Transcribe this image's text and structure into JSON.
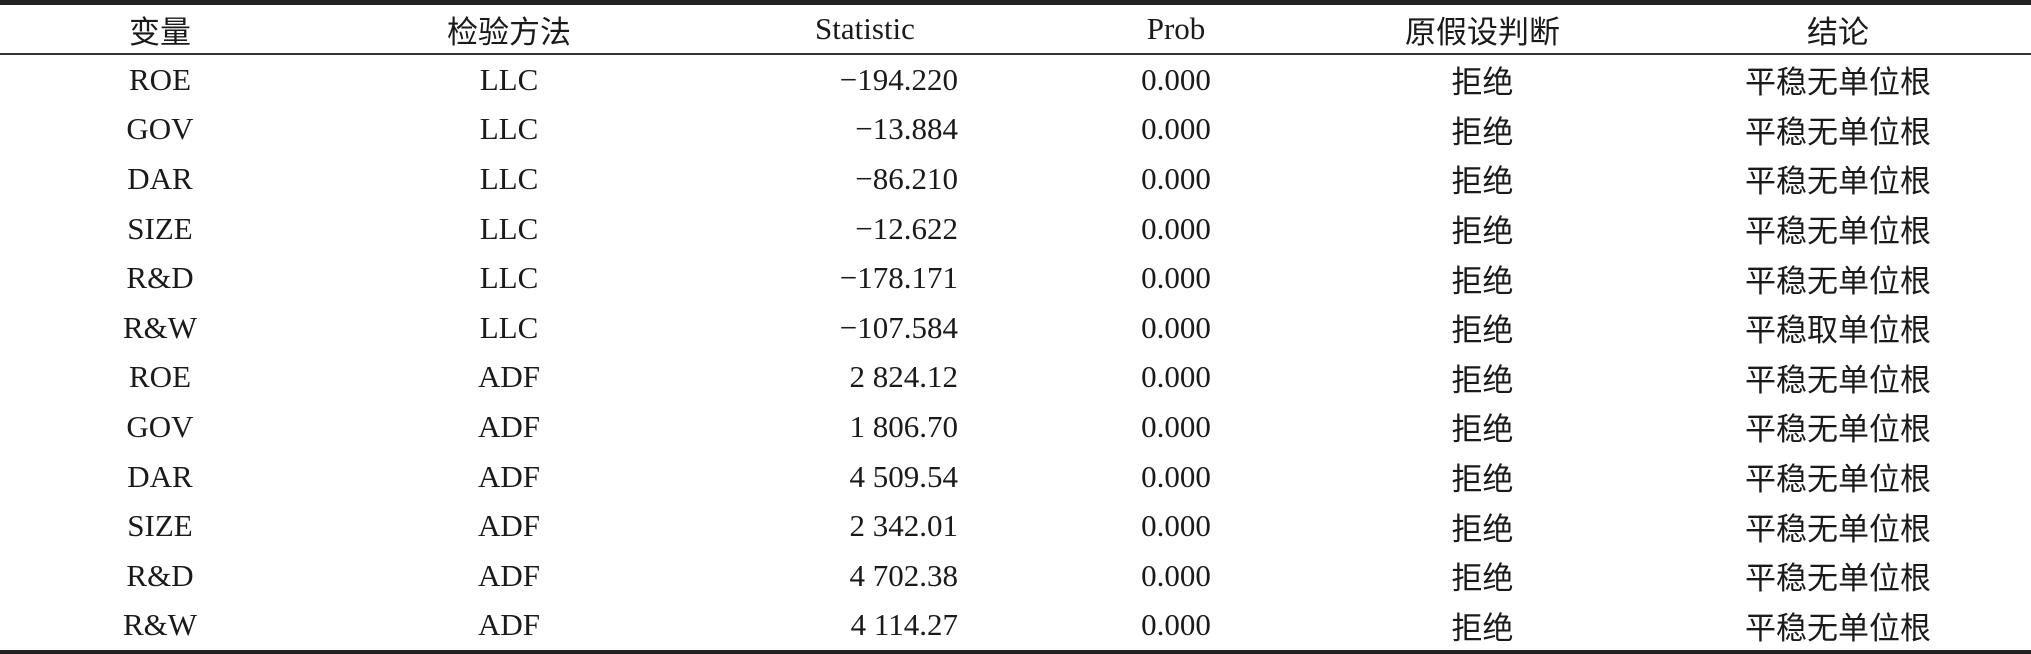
{
  "table": {
    "headers": [
      "变量",
      "检验方法",
      "Statistic",
      "Prob",
      "原假设判断",
      "结论"
    ],
    "rows": [
      [
        "ROE",
        "LLC",
        "−194.220",
        "0.000",
        "拒绝",
        "平稳无单位根"
      ],
      [
        "GOV",
        "LLC",
        "−13.884",
        "0.000",
        "拒绝",
        "平稳无单位根"
      ],
      [
        "DAR",
        "LLC",
        "−86.210",
        "0.000",
        "拒绝",
        "平稳无单位根"
      ],
      [
        "SIZE",
        "LLC",
        "−12.622",
        "0.000",
        "拒绝",
        "平稳无单位根"
      ],
      [
        "R&D",
        "LLC",
        "−178.171",
        "0.000",
        "拒绝",
        "平稳无单位根"
      ],
      [
        "R&W",
        "LLC",
        "−107.584",
        "0.000",
        "拒绝",
        "平稳取单位根"
      ],
      [
        "ROE",
        "ADF",
        "2 824.12",
        "0.000",
        "拒绝",
        "平稳无单位根"
      ],
      [
        "GOV",
        "ADF",
        "1 806.70",
        "0.000",
        "拒绝",
        "平稳无单位根"
      ],
      [
        "DAR",
        "ADF",
        "4 509.54",
        "0.000",
        "拒绝",
        "平稳无单位根"
      ],
      [
        "SIZE",
        "ADF",
        "2 342.01",
        "0.000",
        "拒绝",
        "平稳无单位根"
      ],
      [
        "R&D",
        "ADF",
        "4 702.38",
        "0.000",
        "拒绝",
        "平稳无单位根"
      ],
      [
        "R&W",
        "ADF",
        "4 114.27",
        "0.000",
        "拒绝",
        "平稳无单位根"
      ]
    ]
  }
}
